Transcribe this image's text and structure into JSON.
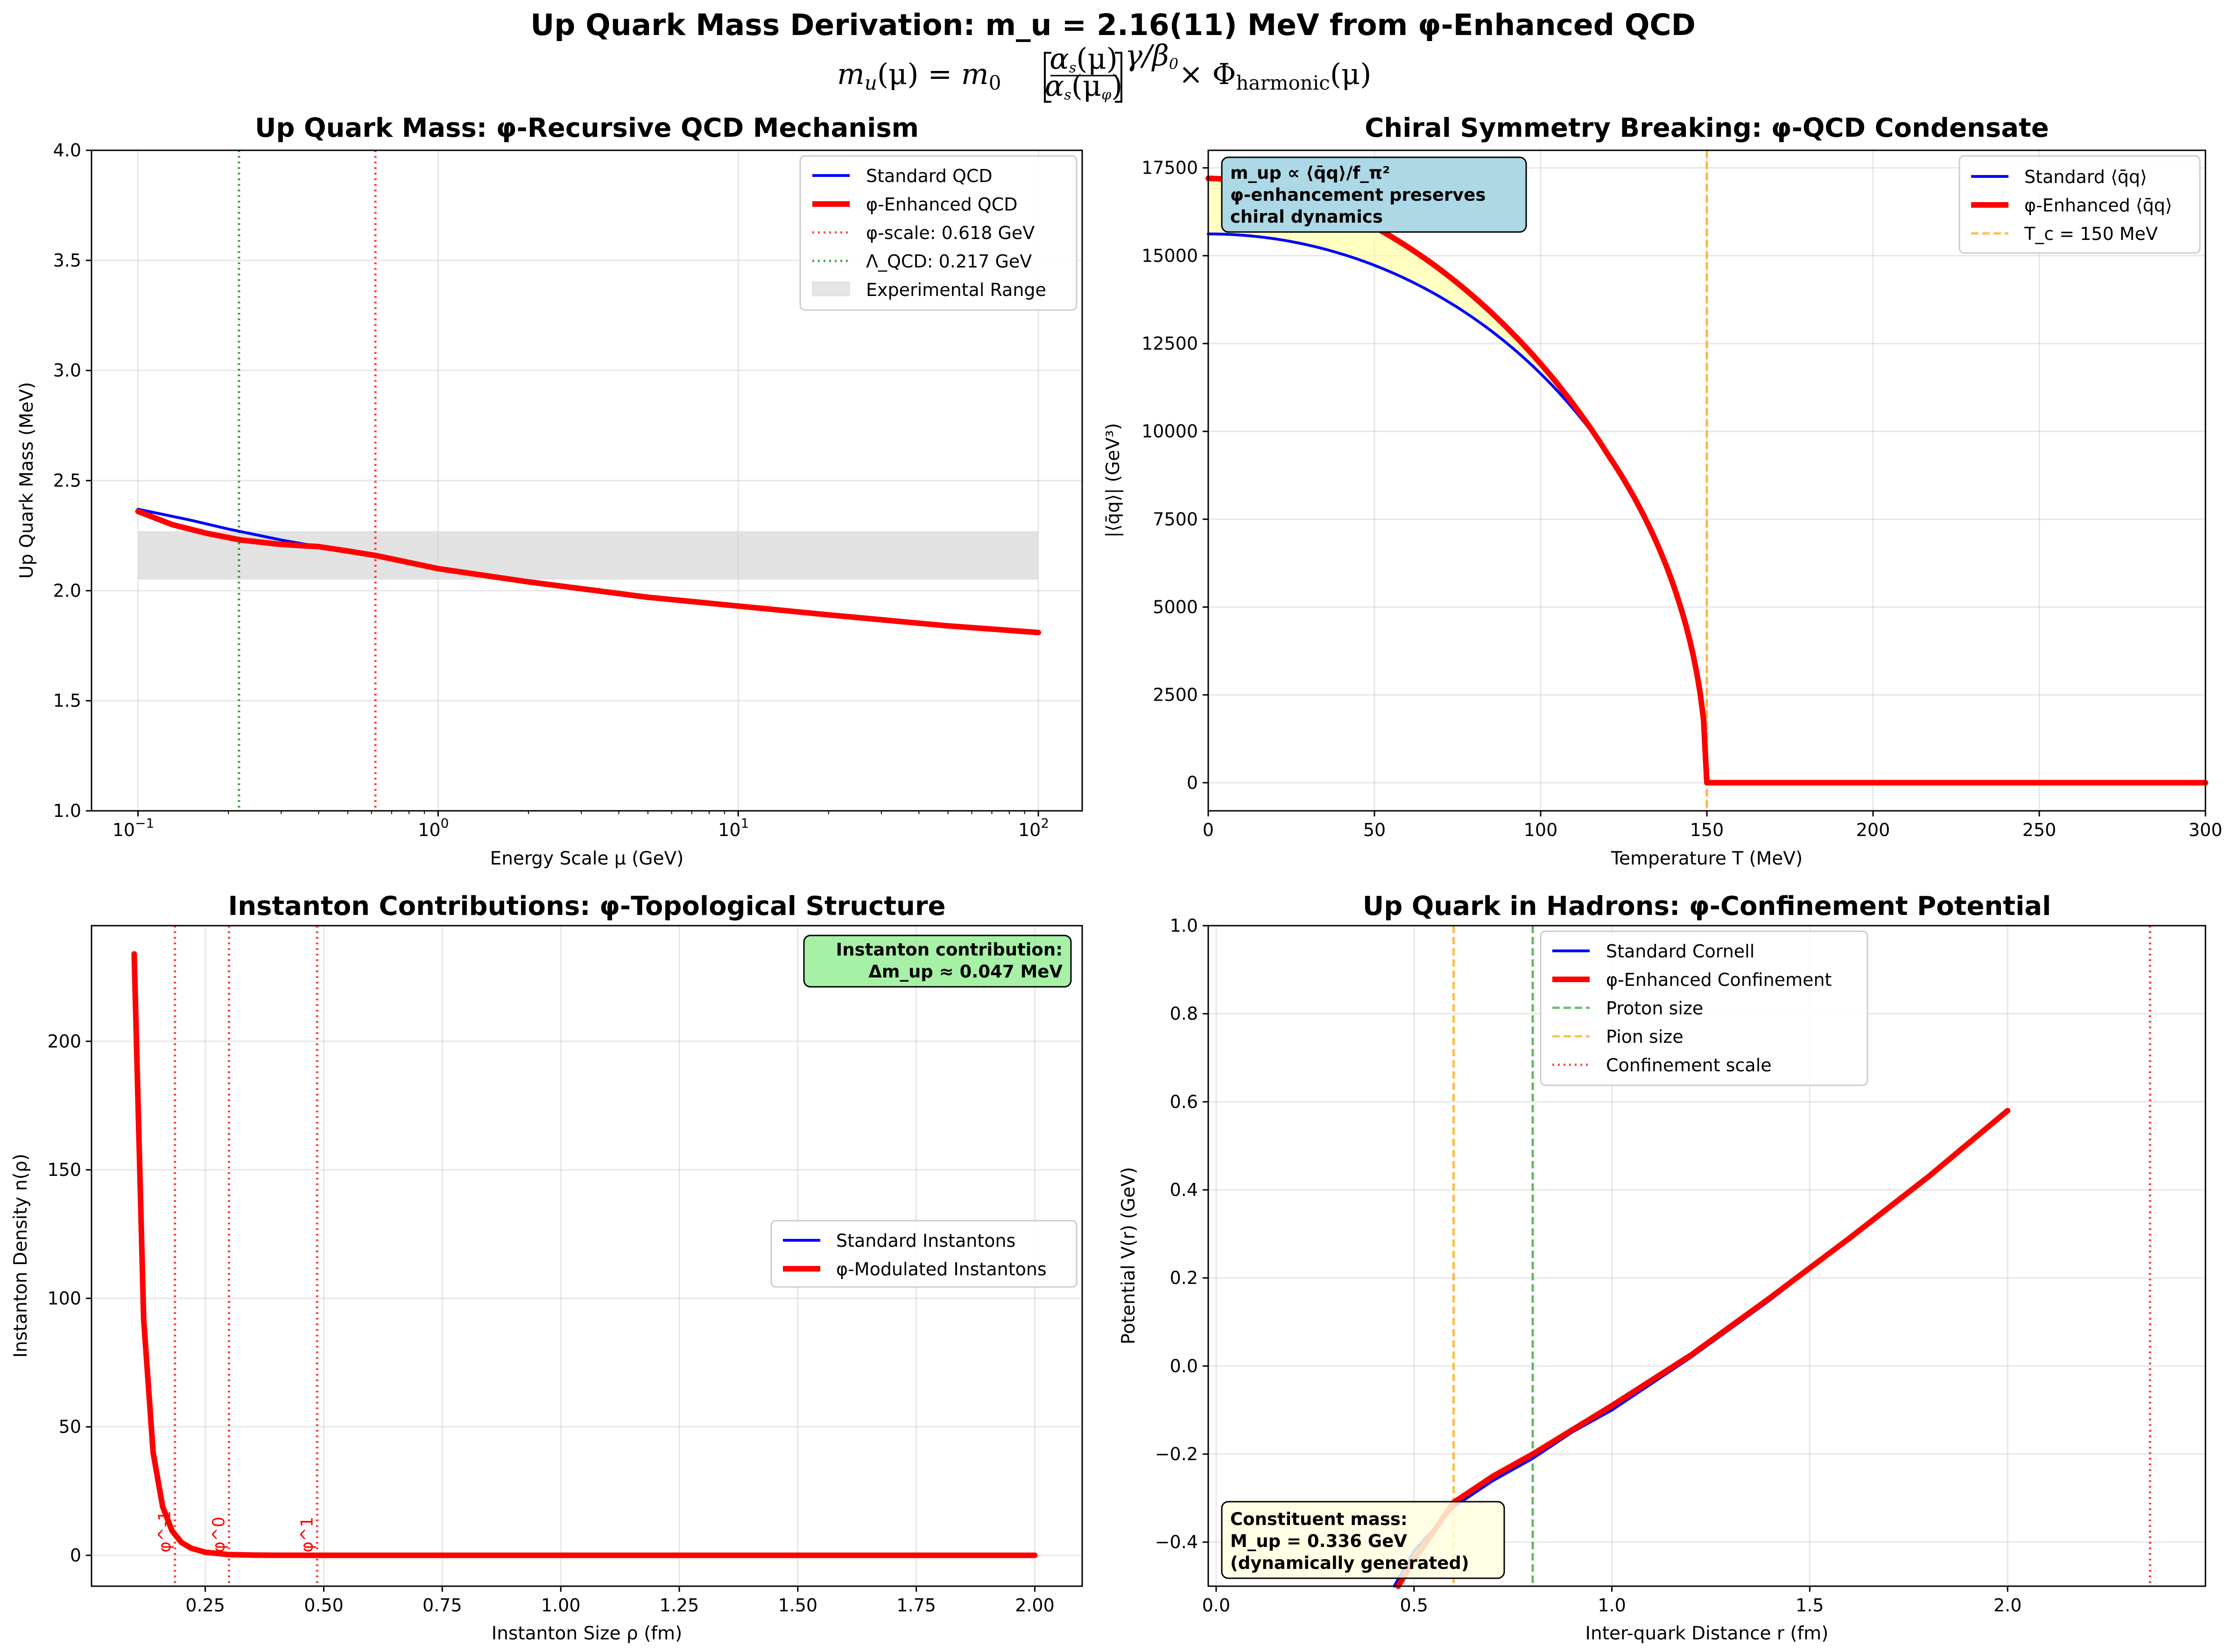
{
  "figure": {
    "suptitle": "Up Quark Mass Derivation: m_u = 2.16(11) MeV from φ-Enhanced QCD",
    "formula": {
      "lhs": "m",
      "lhs_sub": "u",
      "lhs_arg": "(μ) = ",
      "m0": "m",
      "m0_sub": "0",
      "num": "α",
      "num_sub": "s",
      "num_arg": "(μ)",
      "den": "α",
      "den_sub": "s",
      "den_arg": "(μ",
      "den_arg_sub": "φ",
      "den_close": ")",
      "exp": "γ/β",
      "exp_sub": "0",
      "times": "× Φ",
      "phi_sub": "harmonic",
      "phi_arg": "(μ)"
    }
  },
  "colors": {
    "standard": "#0000ff",
    "enhanced": "#ff0000",
    "green": "#008000",
    "green_dash": "#2ca02c",
    "orange": "#ffa500",
    "band": "#d3d3d3",
    "fill_yellow": "#ffff99",
    "box_blue": "#add8e6",
    "box_green": "#90ee90",
    "box_yellow": "#ffffe0"
  },
  "chart_data": [
    {
      "id": "panel1",
      "type": "line",
      "title": "Up Quark Mass: φ-Recursive QCD Mechanism",
      "xlabel": "Energy Scale μ (GeV)",
      "ylabel": "Up Quark Mass (MeV)",
      "xscale": "log",
      "xlim": [
        0.07,
        140
      ],
      "ylim": [
        1.0,
        4.0
      ],
      "xtick_labels": [
        "10",
        "10",
        "10",
        "10"
      ],
      "xtick_exponents": [
        "−1",
        "0",
        "1",
        "2"
      ],
      "xticks": [
        0.1,
        1,
        10,
        100
      ],
      "yticks": [
        1.0,
        1.5,
        2.0,
        2.5,
        3.0,
        3.5,
        4.0
      ],
      "ytick_labels": [
        "1.0",
        "1.5",
        "2.0",
        "2.5",
        "3.0",
        "3.5",
        "4.0"
      ],
      "grid": true,
      "legend_position": "top-right",
      "band": {
        "label": "Experimental Range",
        "x": [
          0.1,
          100
        ],
        "y": [
          2.05,
          2.27
        ]
      },
      "vlines": [
        {
          "label": "φ-scale: 0.618 GeV",
          "x": 0.618,
          "style": "dotted",
          "color": "#ff0000"
        },
        {
          "label": "Λ_QCD: 0.217 GeV",
          "x": 0.217,
          "style": "dotted",
          "color": "#008000"
        }
      ],
      "series": [
        {
          "name": "Standard QCD",
          "color": "#0000ff",
          "x": [
            0.1,
            0.15,
            0.2,
            0.3,
            0.4,
            0.5,
            0.618,
            1,
            2,
            5,
            10,
            20,
            50,
            100
          ],
          "y": [
            2.37,
            2.32,
            2.28,
            2.23,
            2.2,
            2.18,
            2.16,
            2.1,
            2.04,
            1.97,
            1.93,
            1.89,
            1.84,
            1.81
          ]
        },
        {
          "name": "φ-Enhanced QCD",
          "color": "#ff0000",
          "x": [
            0.1,
            0.13,
            0.17,
            0.22,
            0.3,
            0.4,
            0.5,
            0.618,
            1,
            2,
            5,
            10,
            20,
            50,
            100
          ],
          "y": [
            2.36,
            2.3,
            2.26,
            2.23,
            2.21,
            2.2,
            2.18,
            2.16,
            2.1,
            2.04,
            1.97,
            1.93,
            1.89,
            1.84,
            1.81
          ]
        }
      ]
    },
    {
      "id": "panel2",
      "type": "line",
      "title": "Chiral Symmetry Breaking: φ-QCD Condensate",
      "xlabel": "Temperature T (MeV)",
      "ylabel": "|⟨q̄q⟩| (GeV³)",
      "xlim": [
        0,
        300
      ],
      "ylim": [
        -800,
        18000
      ],
      "xticks": [
        0,
        50,
        100,
        150,
        200,
        250,
        300
      ],
      "xtick_labels": [
        "0",
        "50",
        "100",
        "150",
        "200",
        "250",
        "300"
      ],
      "yticks": [
        0,
        2500,
        5000,
        7500,
        10000,
        12500,
        15000,
        17500
      ],
      "ytick_labels": [
        "0",
        "2500",
        "5000",
        "7500",
        "10000",
        "12500",
        "15000",
        "17500"
      ],
      "grid": true,
      "legend_position": "top-right",
      "vlines": [
        {
          "label": "T_c = 150 MeV",
          "x": 150,
          "style": "dashed",
          "color": "#ffa500"
        }
      ],
      "series": [
        {
          "name": "Standard ⟨q̄q⟩",
          "color": "#0000ff",
          "T_c": 150,
          "amplitude": 15620
        },
        {
          "name": "φ-Enhanced ⟨q̄q⟩",
          "color": "#ff0000",
          "T_c": 150,
          "amplitude": 17200,
          "enhancement_fades_by": 120
        }
      ],
      "annotation": "m_up ∝ ⟨q̄q⟩/f_π²\nφ-enhancement preserves\nchiral dynamics",
      "annotation_lines": [
        "m_up ∝ ⟨q̄q⟩/f_π²",
        "φ-enhancement preserves",
        "chiral dynamics"
      ]
    },
    {
      "id": "panel3",
      "type": "line",
      "title": "Instanton Contributions: φ-Topological Structure",
      "xlabel": "Instanton Size ρ (fm)",
      "ylabel": "Instanton Density n(ρ)",
      "xlim": [
        0.01,
        2.1
      ],
      "ylim": [
        -12,
        245
      ],
      "xticks": [
        0.25,
        0.5,
        0.75,
        1.0,
        1.25,
        1.5,
        1.75,
        2.0
      ],
      "xtick_labels": [
        "0.25",
        "0.50",
        "0.75",
        "1.00",
        "1.25",
        "1.50",
        "1.75",
        "2.00"
      ],
      "yticks": [
        0,
        50,
        100,
        150,
        200
      ],
      "ytick_labels": [
        "0",
        "50",
        "100",
        "150",
        "200"
      ],
      "grid": true,
      "legend_position": "center-right",
      "vlines": [
        {
          "label": "φ^-1",
          "x": 0.186
        },
        {
          "label": "φ^0",
          "x": 0.3
        },
        {
          "label": "φ^1",
          "x": 0.486
        }
      ],
      "series": [
        {
          "name": "Standard Instantons",
          "color": "#0000ff",
          "x": [
            0.1,
            0.12,
            0.14,
            0.16,
            0.18,
            0.2,
            0.22,
            0.25,
            0.3,
            0.35,
            0.4,
            0.5,
            0.75,
            1.0,
            1.5,
            2.0
          ],
          "y": [
            234,
            92,
            40,
            19,
            9.5,
            5,
            2.8,
            1.2,
            0.3,
            0.1,
            0.04,
            0.0,
            0,
            0,
            0,
            0
          ]
        },
        {
          "name": "φ-Modulated Instantons",
          "color": "#ff0000",
          "x": [
            0.1,
            0.12,
            0.14,
            0.16,
            0.18,
            0.2,
            0.22,
            0.25,
            0.3,
            0.35,
            0.4,
            0.5,
            0.75,
            1.0,
            1.5,
            2.0
          ],
          "y": [
            234,
            92,
            40,
            19,
            9.5,
            5,
            2.8,
            1.2,
            0.3,
            0.1,
            0.04,
            0.0,
            0,
            0,
            0,
            0
          ]
        }
      ],
      "annotation": "Instanton contribution:\nΔm_up ≈ 0.047 MeV",
      "annotation_lines": [
        "Instanton contribution:",
        "Δm_up ≈ 0.047 MeV"
      ]
    },
    {
      "id": "panel4",
      "type": "line",
      "title": "Up Quark in Hadrons: φ-Confinement Potential",
      "xlabel": "Inter-quark Distance r (fm)",
      "ylabel": "Potential V(r) (GeV)",
      "xlim": [
        -0.02,
        2.5
      ],
      "ylim": [
        -0.5,
        1.0
      ],
      "xticks": [
        0.0,
        0.5,
        1.0,
        1.5,
        2.0
      ],
      "xtick_labels": [
        "0.0",
        "0.5",
        "1.0",
        "1.5",
        "2.0"
      ],
      "yticks": [
        -0.4,
        -0.2,
        0.0,
        0.2,
        0.4,
        0.6,
        0.8,
        1.0
      ],
      "ytick_labels": [
        "−0.4",
        "−0.2",
        "0.0",
        "0.2",
        "0.4",
        "0.6",
        "0.8",
        "1.0"
      ],
      "grid": true,
      "legend_position": "top-center",
      "vlines": [
        {
          "label": "Proton size",
          "x": 0.8,
          "style": "dashed",
          "color": "#2ca02c"
        },
        {
          "label": "Pion size",
          "x": 0.6,
          "style": "dashed",
          "color": "#ffa500"
        },
        {
          "label": "Confinement scale",
          "x": 2.36,
          "style": "dotted",
          "color": "#ff0000"
        }
      ],
      "series": [
        {
          "name": "Standard Cornell",
          "color": "#0000ff",
          "x": [
            0.45,
            0.5,
            0.6,
            0.7,
            0.8,
            0.9,
            1.0,
            1.2,
            1.4,
            1.6,
            1.8,
            2.0
          ],
          "y": [
            -0.5,
            -0.42,
            -0.32,
            -0.26,
            -0.21,
            -0.15,
            -0.1,
            0.02,
            0.15,
            0.29,
            0.43,
            0.58
          ]
        },
        {
          "name": "φ-Enhanced Confinement",
          "color": "#ff0000",
          "x": [
            0.46,
            0.5,
            0.6,
            0.7,
            0.8,
            0.9,
            1.0,
            1.2,
            1.4,
            1.6,
            1.8,
            2.0
          ],
          "y": [
            -0.5,
            -0.44,
            -0.31,
            -0.25,
            -0.2,
            -0.145,
            -0.09,
            0.025,
            0.155,
            0.29,
            0.43,
            0.58
          ]
        }
      ],
      "annotation": "Constituent mass:\nM_up = 0.336 GeV\n(dynamically generated)",
      "annotation_lines": [
        "Constituent mass:",
        "M_up = 0.336 GeV",
        "(dynamically generated)"
      ]
    }
  ]
}
